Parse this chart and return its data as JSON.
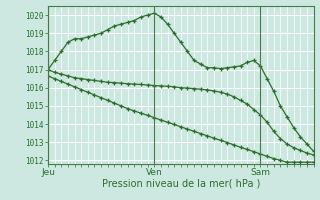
{
  "xlabel": "Pression niveau de la mer( hPa )",
  "bg_color": "#cce8e0",
  "grid_color": "#ffffff",
  "line_color": "#2d6e2d",
  "ylim": [
    1011.8,
    1020.5
  ],
  "yticks": [
    1012,
    1013,
    1014,
    1015,
    1016,
    1017,
    1018,
    1019,
    1020
  ],
  "xtick_labels": [
    "Jeu",
    "Ven",
    "Sam"
  ],
  "xtick_positions": [
    0,
    16,
    32
  ],
  "xlim": [
    0,
    40
  ],
  "series1_y": [
    1017.0,
    1017.5,
    1018.0,
    1018.5,
    1018.7,
    1018.7,
    1018.8,
    1018.9,
    1019.0,
    1019.2,
    1019.4,
    1019.5,
    1019.6,
    1019.7,
    1019.9,
    1020.0,
    1020.1,
    1019.9,
    1019.5,
    1019.0,
    1018.5,
    1018.0,
    1017.5,
    1017.3,
    1017.1,
    1017.1,
    1017.05,
    1017.1,
    1017.15,
    1017.2,
    1017.4,
    1017.5,
    1017.2,
    1016.5,
    1015.8,
    1015.0,
    1014.4,
    1013.8,
    1013.3,
    1012.9,
    1012.5
  ],
  "series2_y": [
    1017.0,
    1016.85,
    1016.75,
    1016.65,
    1016.55,
    1016.5,
    1016.45,
    1016.4,
    1016.35,
    1016.3,
    1016.28,
    1016.25,
    1016.22,
    1016.2,
    1016.18,
    1016.15,
    1016.12,
    1016.1,
    1016.08,
    1016.05,
    1016.0,
    1015.98,
    1015.95,
    1015.92,
    1015.88,
    1015.82,
    1015.75,
    1015.65,
    1015.5,
    1015.3,
    1015.1,
    1014.8,
    1014.5,
    1014.1,
    1013.6,
    1013.2,
    1012.9,
    1012.7,
    1012.55,
    1012.4,
    1012.3
  ],
  "series3_y": [
    1016.65,
    1016.5,
    1016.35,
    1016.2,
    1016.05,
    1015.9,
    1015.75,
    1015.6,
    1015.45,
    1015.3,
    1015.15,
    1015.0,
    1014.85,
    1014.72,
    1014.6,
    1014.48,
    1014.35,
    1014.22,
    1014.1,
    1013.98,
    1013.85,
    1013.72,
    1013.6,
    1013.47,
    1013.35,
    1013.22,
    1013.1,
    1012.98,
    1012.85,
    1012.72,
    1012.6,
    1012.48,
    1012.35,
    1012.22,
    1012.1,
    1012.0,
    1011.9,
    1011.9,
    1011.9,
    1011.9,
    1011.9
  ]
}
